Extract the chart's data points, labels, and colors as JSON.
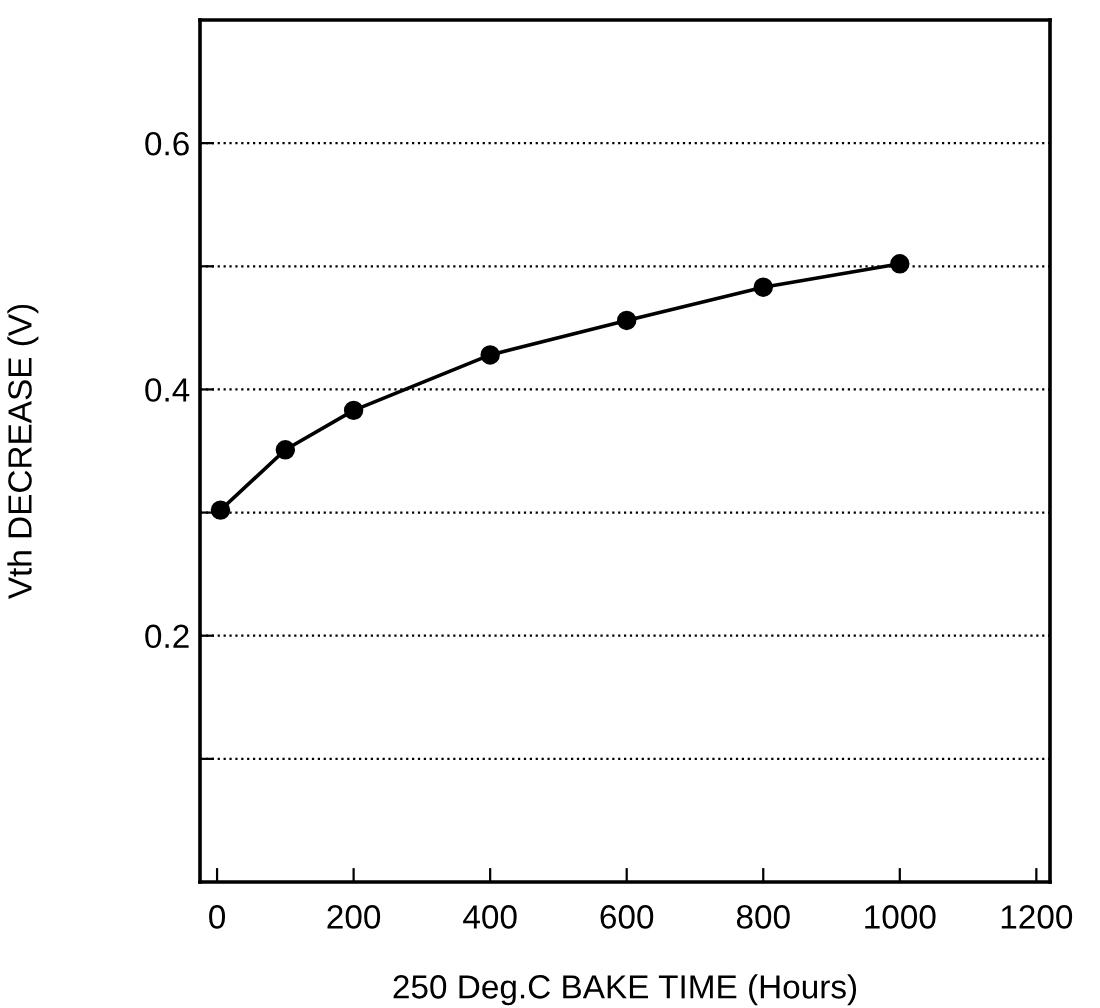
{
  "chart_data": {
    "type": "line",
    "xlabel": "250 Deg.C BAKE TIME (Hours)",
    "ylabel": "Vth DECREASE (V)",
    "x": [
      5,
      100,
      200,
      400,
      600,
      800,
      1000
    ],
    "series": [
      {
        "color": "#000000",
        "values": [
          0.302,
          0.351,
          0.383,
          0.428,
          0.456,
          0.483,
          0.502
        ]
      }
    ],
    "xlim": [
      -25,
      1220
    ],
    "xticks": [
      0,
      200,
      400,
      600,
      800,
      1000,
      1200
    ],
    "ylim": [
      0,
      0.7
    ],
    "yticks": [
      {
        "value": 0.1,
        "label": null
      },
      0.2,
      {
        "value": 0.3,
        "label": null
      },
      0.4,
      {
        "value": 0.5,
        "label": null
      },
      0.6
    ],
    "grid": "y",
    "marker": "circle",
    "line_style": "solid"
  }
}
